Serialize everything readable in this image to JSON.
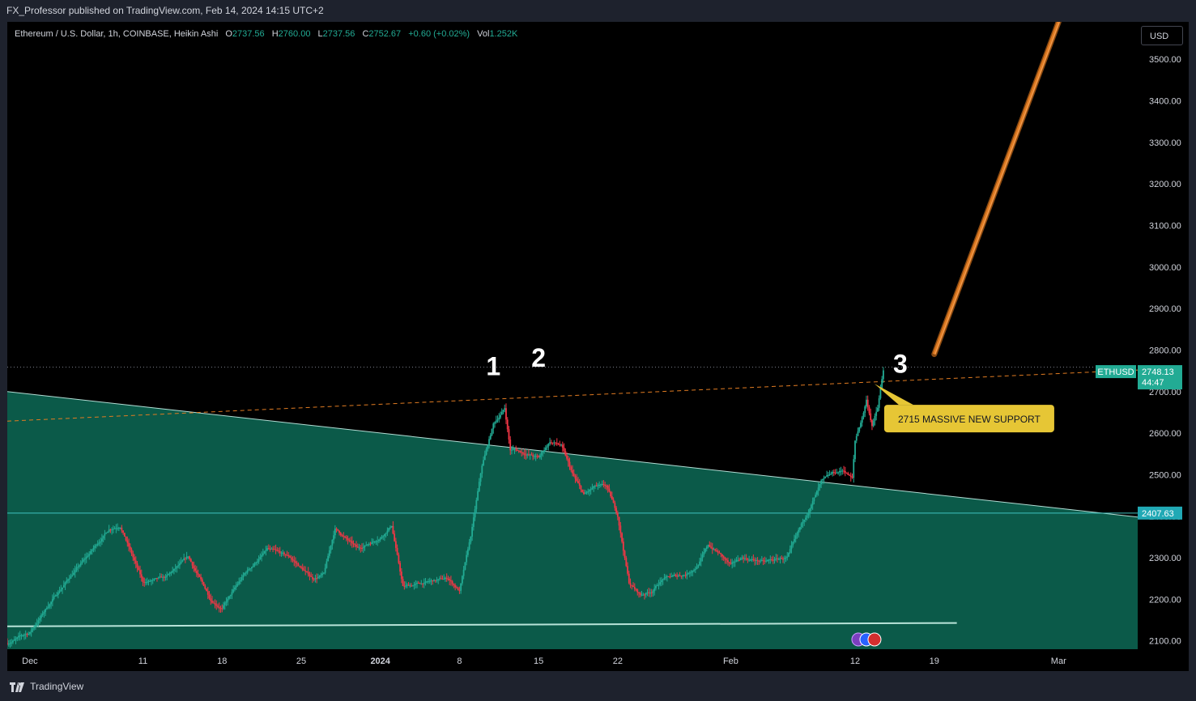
{
  "header": {
    "publisher_line": "FX_Professor published on TradingView.com, Feb 14, 2024 14:15 UTC+2"
  },
  "legend": {
    "symbol": "Ethereum / U.S. Dollar, 1h, COINBASE, Heikin Ashi",
    "open_label": "O",
    "open": "2737.56",
    "high_label": "H",
    "high": "2760.00",
    "low_label": "L",
    "low": "2737.56",
    "close_label": "C",
    "close": "2752.67",
    "change": "+0.60 (+0.02%)",
    "volume_label": "Vol",
    "volume": "1.252K"
  },
  "currency_button": "USD",
  "footer": {
    "brand": "TradingView"
  },
  "colors": {
    "background": "#000000",
    "channel_fill": "#0b5a49",
    "up": "#22ab94",
    "down": "#f23645",
    "orange": "#e07b22",
    "annotation_bg": "#e6c635"
  },
  "chart_data": {
    "type": "candlestick",
    "ylim": [
      2080,
      3590
    ],
    "y_ticks": [
      "3500.00",
      "3400.00",
      "3300.00",
      "3200.00",
      "3100.00",
      "3000.00",
      "2900.00",
      "2800.00",
      "2700.00",
      "2600.00",
      "2500.00",
      "2400.00",
      "2300.00",
      "2200.00",
      "2100.00"
    ],
    "y_tick_values": [
      3500,
      3400,
      3300,
      3200,
      3100,
      3000,
      2900,
      2800,
      2700,
      2600,
      2500,
      2400,
      2300,
      2200,
      2100
    ],
    "x_range": [
      "2023-11-29",
      "2024-03-08"
    ],
    "x_ticks": [
      {
        "label": "Dec",
        "date": "2023-12-01"
      },
      {
        "label": "11",
        "date": "2023-12-11"
      },
      {
        "label": "18",
        "date": "2023-12-18"
      },
      {
        "label": "25",
        "date": "2023-12-25"
      },
      {
        "label": "2024",
        "date": "2024-01-01"
      },
      {
        "label": "8",
        "date": "2024-01-08"
      },
      {
        "label": "15",
        "date": "2024-01-15"
      },
      {
        "label": "22",
        "date": "2024-01-22"
      },
      {
        "label": "Feb",
        "date": "2024-02-01"
      },
      {
        "label": "12",
        "date": "2024-02-12"
      },
      {
        "label": "19",
        "date": "2024-02-19"
      },
      {
        "label": "Mar",
        "date": "2024-03-01"
      }
    ],
    "price_path": [
      [
        "2023-11-29",
        2095
      ],
      [
        "2023-12-01",
        2120
      ],
      [
        "2023-12-03",
        2200
      ],
      [
        "2023-12-05",
        2270
      ],
      [
        "2023-12-06",
        2300
      ],
      [
        "2023-12-08",
        2370
      ],
      [
        "2023-12-09",
        2380
      ],
      [
        "2023-12-11",
        2240
      ],
      [
        "2023-12-13",
        2250
      ],
      [
        "2023-12-15",
        2300
      ],
      [
        "2023-12-17",
        2200
      ],
      [
        "2023-12-18",
        2180
      ],
      [
        "2023-12-20",
        2260
      ],
      [
        "2023-12-22",
        2320
      ],
      [
        "2023-12-24",
        2300
      ],
      [
        "2023-12-26",
        2250
      ],
      [
        "2023-12-27",
        2260
      ],
      [
        "2023-12-28",
        2370
      ],
      [
        "2023-12-30",
        2320
      ],
      [
        "2024-01-01",
        2350
      ],
      [
        "2024-01-02",
        2380
      ],
      [
        "2024-01-03",
        2230
      ],
      [
        "2024-01-05",
        2240
      ],
      [
        "2024-01-07",
        2250
      ],
      [
        "2024-01-08",
        2220
      ],
      [
        "2024-01-09",
        2350
      ],
      [
        "2024-01-10",
        2520
      ],
      [
        "2024-01-11",
        2620
      ],
      [
        "2024-01-12",
        2660
      ],
      [
        "2024-01-12T12",
        2560
      ],
      [
        "2024-01-13",
        2560
      ],
      [
        "2024-01-15",
        2540
      ],
      [
        "2024-01-16",
        2580
      ],
      [
        "2024-01-17",
        2570
      ],
      [
        "2024-01-18",
        2500
      ],
      [
        "2024-01-19",
        2450
      ],
      [
        "2024-01-20",
        2470
      ],
      [
        "2024-01-21",
        2470
      ],
      [
        "2024-01-22",
        2400
      ],
      [
        "2024-01-23",
        2240
      ],
      [
        "2024-01-24",
        2210
      ],
      [
        "2024-01-25",
        2220
      ],
      [
        "2024-01-26",
        2250
      ],
      [
        "2024-01-28",
        2260
      ],
      [
        "2024-01-29",
        2280
      ],
      [
        "2024-01-30",
        2330
      ],
      [
        "2024-01-31",
        2310
      ],
      [
        "2024-02-01",
        2280
      ],
      [
        "2024-02-02",
        2300
      ],
      [
        "2024-02-04",
        2290
      ],
      [
        "2024-02-06",
        2300
      ],
      [
        "2024-02-07",
        2360
      ],
      [
        "2024-02-08",
        2420
      ],
      [
        "2024-02-09",
        2480
      ],
      [
        "2024-02-10",
        2500
      ],
      [
        "2024-02-11",
        2510
      ],
      [
        "2024-02-11T18",
        2490
      ],
      [
        "2024-02-12",
        2580
      ],
      [
        "2024-02-12T18",
        2650
      ],
      [
        "2024-02-13",
        2680
      ],
      [
        "2024-02-13T12",
        2620
      ],
      [
        "2024-02-14",
        2660
      ],
      [
        "2024-02-14T12",
        2750
      ]
    ],
    "lines": [
      {
        "kind": "channel-top",
        "from": [
          "2023-11-29",
          2700
        ],
        "to": [
          "2024-03-08",
          2398
        ]
      },
      {
        "kind": "channel-bottom",
        "from": [
          "2023-11-29",
          2135
        ],
        "to": [
          "2024-02-21",
          2143
        ]
      },
      {
        "kind": "horizontal",
        "price": 2407.63
      },
      {
        "kind": "dashed-resistance",
        "from": [
          "2023-11-29",
          2629
        ],
        "to": [
          "2024-03-08",
          2752
        ]
      },
      {
        "kind": "dotted-last-price",
        "price": 2759
      }
    ],
    "orange_rocket": {
      "from": [
        "2024-02-19",
        2790
      ],
      "to": [
        "2024-03-01",
        3590
      ]
    },
    "price_labels": [
      {
        "text": "2748.13",
        "price": 2748.13,
        "sub": "44:47",
        "tag": "ETHUSD"
      },
      {
        "text": "2407.63",
        "price": 2407.63
      }
    ],
    "annotations": [
      {
        "text": "1",
        "date": "2024-01-11",
        "price": 2740
      },
      {
        "text": "2",
        "date": "2024-01-15",
        "price": 2760
      },
      {
        "text": "3",
        "date": "2024-02-16",
        "price": 2745
      }
    ],
    "callout": {
      "text": "2715 MASSIVE NEW SUPPORT",
      "date": "2024-02-14",
      "price": 2715
    }
  }
}
